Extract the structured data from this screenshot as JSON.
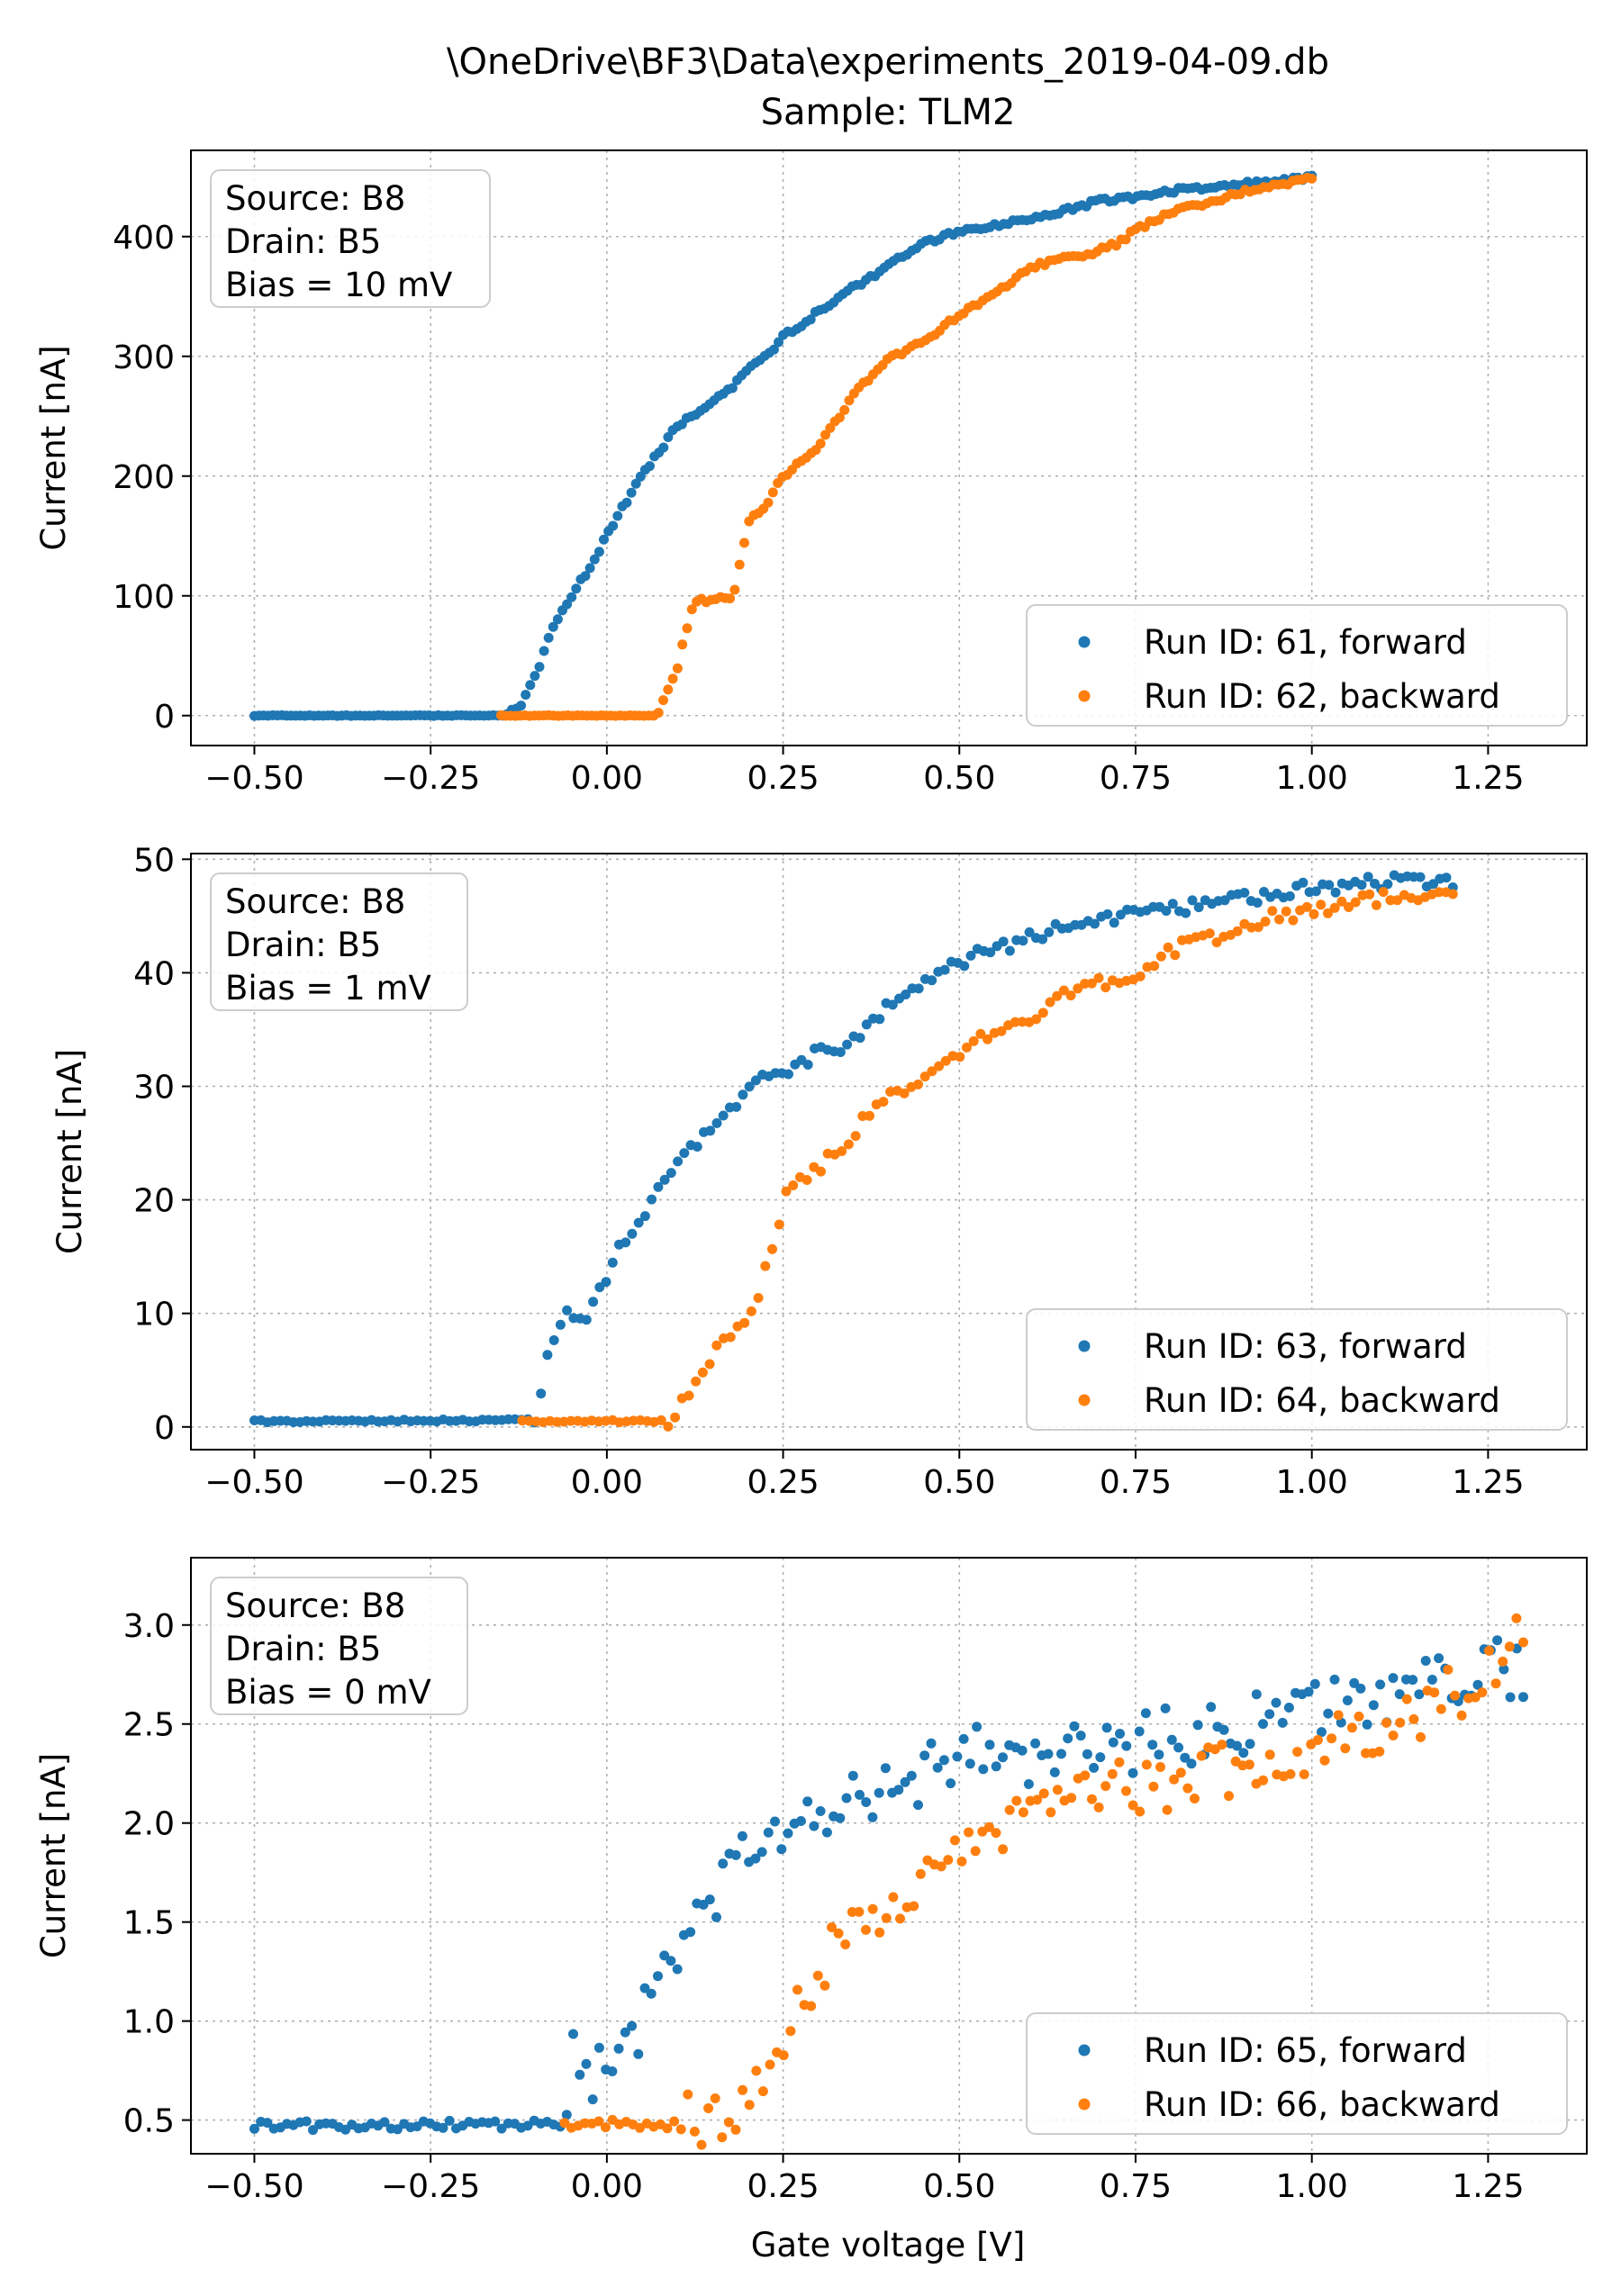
{
  "title_lines": [
    "\\OneDrive\\BF3\\Data\\experiments_2019-04-09.db",
    "Sample: TLM2"
  ],
  "xlabel": "Gate voltage [V]",
  "colors": {
    "forward": "#1f77b4",
    "backward": "#ff7f0e",
    "grid": "#b0b0b0"
  },
  "chart_data": [
    {
      "type": "scatter",
      "ylabel": "Current [nA]",
      "xlim": [
        -0.59,
        1.39
      ],
      "ylim": [
        -25,
        472
      ],
      "xticks": [
        "-0.50",
        "-0.25",
        "0.00",
        "0.25",
        "0.50",
        "0.75",
        "1.00",
        "1.25"
      ],
      "xtick_values": [
        -0.5,
        -0.25,
        0,
        0.25,
        0.5,
        0.75,
        1.0,
        1.25
      ],
      "yticks": [
        "0",
        "100",
        "200",
        "300",
        "400"
      ],
      "ytick_values": [
        0,
        100,
        200,
        300,
        400
      ],
      "grid": true,
      "info_box": [
        "Source: B8",
        "Drain: B5",
        "Bias = 10 mV"
      ],
      "legend_position": "lower right",
      "series": [
        {
          "name": "Run ID: 61, forward",
          "color": "#1f77b4",
          "x_range": [
            -0.5,
            1.0
          ],
          "n": 231,
          "points": [
            [
              -0.5,
              0
            ],
            [
              -0.15,
              0
            ],
            [
              -0.12,
              10
            ],
            [
              -0.1,
              35
            ],
            [
              -0.08,
              70
            ],
            [
              -0.05,
              100
            ],
            [
              -0.02,
              128
            ],
            [
              0.0,
              150
            ],
            [
              0.02,
              172
            ],
            [
              0.05,
              200
            ],
            [
              0.08,
              225
            ],
            [
              0.1,
              243
            ],
            [
              0.13,
              253
            ],
            [
              0.15,
              262
            ],
            [
              0.18,
              275
            ],
            [
              0.2,
              288
            ],
            [
              0.23,
              302
            ],
            [
              0.25,
              318
            ],
            [
              0.28,
              328
            ],
            [
              0.3,
              338
            ],
            [
              0.33,
              348
            ],
            [
              0.35,
              358
            ],
            [
              0.38,
              368
            ],
            [
              0.4,
              378
            ],
            [
              0.43,
              387
            ],
            [
              0.45,
              395
            ],
            [
              0.48,
              400
            ],
            [
              0.5,
              405
            ],
            [
              0.55,
              410
            ],
            [
              0.6,
              415
            ],
            [
              0.65,
              422
            ],
            [
              0.7,
              430
            ],
            [
              0.75,
              433
            ],
            [
              0.8,
              438
            ],
            [
              0.85,
              441
            ],
            [
              0.9,
              444
            ],
            [
              0.95,
              447
            ],
            [
              1.0,
              449
            ]
          ]
        },
        {
          "name": "Run ID: 62, backward",
          "color": "#ff7f0e",
          "x_range": [
            -0.15,
            1.0
          ],
          "n": 171,
          "points": [
            [
              -0.15,
              0
            ],
            [
              0.07,
              0
            ],
            [
              0.08,
              12
            ],
            [
              0.1,
              40
            ],
            [
              0.11,
              65
            ],
            [
              0.12,
              88
            ],
            [
              0.13,
              96
            ],
            [
              0.15,
              97
            ],
            [
              0.18,
              99
            ],
            [
              0.19,
              130
            ],
            [
              0.2,
              160
            ],
            [
              0.23,
              180
            ],
            [
              0.25,
              200
            ],
            [
              0.28,
              215
            ],
            [
              0.3,
              225
            ],
            [
              0.33,
              250
            ],
            [
              0.36,
              275
            ],
            [
              0.4,
              298
            ],
            [
              0.45,
              313
            ],
            [
              0.5,
              335
            ],
            [
              0.55,
              352
            ],
            [
              0.6,
              373
            ],
            [
              0.63,
              380
            ],
            [
              0.68,
              385
            ],
            [
              0.72,
              393
            ],
            [
              0.75,
              405
            ],
            [
              0.8,
              420
            ],
            [
              0.85,
              428
            ],
            [
              0.9,
              437
            ],
            [
              0.95,
              443
            ],
            [
              1.0,
              448
            ]
          ]
        }
      ],
      "legend": [
        "Run ID: 61, forward",
        "Run ID: 62, backward"
      ]
    },
    {
      "type": "scatter",
      "ylabel": "Current [nA]",
      "xlim": [
        -0.59,
        1.39
      ],
      "ylim": [
        -2,
        50.5
      ],
      "xticks": [
        "-0.50",
        "-0.25",
        "0.00",
        "0.25",
        "0.50",
        "0.75",
        "1.00",
        "1.25"
      ],
      "xtick_values": [
        -0.5,
        -0.25,
        0,
        0.25,
        0.5,
        0.75,
        1.0,
        1.25
      ],
      "yticks": [
        "0",
        "10",
        "20",
        "30",
        "40",
        "50"
      ],
      "ytick_values": [
        0,
        10,
        20,
        30,
        40,
        50
      ],
      "grid": true,
      "info_box": [
        "Source: B8",
        "Drain: B5",
        "Bias = 1 mV"
      ],
      "legend_position": "lower right",
      "series": [
        {
          "name": "Run ID: 63, forward",
          "color": "#1f77b4",
          "x_range": [
            -0.5,
            1.2
          ],
          "n": 185,
          "points": [
            [
              -0.5,
              0.5
            ],
            [
              -0.12,
              0.6
            ],
            [
              -0.1,
              1.0
            ],
            [
              -0.08,
              7.5
            ],
            [
              -0.06,
              10
            ],
            [
              -0.03,
              9
            ],
            [
              -0.01,
              12
            ],
            [
              0.02,
              16
            ],
            [
              0.05,
              18
            ],
            [
              0.08,
              22
            ],
            [
              0.1,
              23
            ],
            [
              0.12,
              25
            ],
            [
              0.15,
              26
            ],
            [
              0.18,
              28
            ],
            [
              0.2,
              30
            ],
            [
              0.25,
              31
            ],
            [
              0.3,
              33
            ],
            [
              0.35,
              34
            ],
            [
              0.4,
              37
            ],
            [
              0.45,
              39
            ],
            [
              0.5,
              41
            ],
            [
              0.55,
              42
            ],
            [
              0.6,
              43
            ],
            [
              0.65,
              44
            ],
            [
              0.7,
              44.8
            ],
            [
              0.75,
              45
            ],
            [
              0.8,
              45.5
            ],
            [
              0.85,
              46
            ],
            [
              0.9,
              46.5
            ],
            [
              0.95,
              47
            ],
            [
              1.0,
              47.5
            ],
            [
              1.05,
              47.8
            ],
            [
              1.1,
              48
            ],
            [
              1.15,
              48.2
            ],
            [
              1.2,
              48
            ]
          ]
        },
        {
          "name": "Run ID: 64, backward",
          "color": "#ff7f0e",
          "x_range": [
            -0.12,
            1.2
          ],
          "n": 135,
          "points": [
            [
              -0.12,
              0.5
            ],
            [
              0.08,
              0.5
            ],
            [
              0.1,
              0.8
            ],
            [
              0.11,
              3
            ],
            [
              0.13,
              4
            ],
            [
              0.15,
              6
            ],
            [
              0.17,
              8
            ],
            [
              0.2,
              9
            ],
            [
              0.22,
              13
            ],
            [
              0.24,
              16
            ],
            [
              0.25,
              21
            ],
            [
              0.28,
              22
            ],
            [
              0.3,
              23
            ],
            [
              0.33,
              24
            ],
            [
              0.35,
              26
            ],
            [
              0.4,
              29
            ],
            [
              0.45,
              31
            ],
            [
              0.5,
              33
            ],
            [
              0.55,
              35
            ],
            [
              0.6,
              36
            ],
            [
              0.65,
              38
            ],
            [
              0.7,
              39
            ],
            [
              0.75,
              40
            ],
            [
              0.8,
              42
            ],
            [
              0.85,
              43
            ],
            [
              0.9,
              44
            ],
            [
              0.95,
              45
            ],
            [
              1.0,
              45.5
            ],
            [
              1.05,
              46
            ],
            [
              1.1,
              46.5
            ],
            [
              1.15,
              47
            ],
            [
              1.2,
              47.5
            ]
          ]
        }
      ],
      "legend": [
        "Run ID: 63, forward",
        "Run ID: 64, backward"
      ]
    },
    {
      "type": "scatter",
      "ylabel": "Current [nA]",
      "xlim": [
        -0.59,
        1.39
      ],
      "ylim": [
        0.33,
        3.34
      ],
      "xticks": [
        "-0.50",
        "-0.25",
        "0.00",
        "0.25",
        "0.50",
        "0.75",
        "1.00",
        "1.25"
      ],
      "xtick_values": [
        -0.5,
        -0.25,
        0,
        0.25,
        0.5,
        0.75,
        1.0,
        1.25
      ],
      "yticks": [
        "0.5",
        "1.0",
        "1.5",
        "2.0",
        "2.5",
        "3.0"
      ],
      "ytick_values": [
        0.5,
        1.0,
        1.5,
        2.0,
        2.5,
        3.0
      ],
      "grid": true,
      "info_box": [
        "Source: B8",
        "Drain: B5",
        "Bias = 0 mV"
      ],
      "legend_position": "lower right",
      "series": [
        {
          "name": "Run ID: 65, forward",
          "color": "#1f77b4",
          "x_range": [
            -0.5,
            1.3
          ],
          "n": 196,
          "points": [
            [
              -0.5,
              0.47
            ],
            [
              -0.06,
              0.48
            ],
            [
              -0.05,
              0.8
            ],
            [
              -0.02,
              0.75
            ],
            [
              0.0,
              0.7
            ],
            [
              0.03,
              0.85
            ],
            [
              0.05,
              1.0
            ],
            [
              0.08,
              1.2
            ],
            [
              0.1,
              1.4
            ],
            [
              0.12,
              1.45
            ],
            [
              0.15,
              1.6
            ],
            [
              0.18,
              1.75
            ],
            [
              0.2,
              1.85
            ],
            [
              0.25,
              1.9
            ],
            [
              0.3,
              2.0
            ],
            [
              0.35,
              2.1
            ],
            [
              0.4,
              2.2
            ],
            [
              0.45,
              2.25
            ],
            [
              0.5,
              2.35
            ],
            [
              0.55,
              2.35
            ],
            [
              0.6,
              2.3
            ],
            [
              0.65,
              2.35
            ],
            [
              0.7,
              2.4
            ],
            [
              0.75,
              2.4
            ],
            [
              0.8,
              2.45
            ],
            [
              0.85,
              2.45
            ],
            [
              0.9,
              2.5
            ],
            [
              0.95,
              2.55
            ],
            [
              1.0,
              2.55
            ],
            [
              1.05,
              2.6
            ],
            [
              1.1,
              2.65
            ],
            [
              1.15,
              2.7
            ],
            [
              1.2,
              2.75
            ],
            [
              1.25,
              2.8
            ],
            [
              1.3,
              2.75
            ]
          ]
        },
        {
          "name": "Run ID: 66, backward",
          "color": "#ff7f0e",
          "x_range": [
            -0.06,
            1.3
          ],
          "n": 141,
          "points": [
            [
              -0.06,
              0.48
            ],
            [
              0.1,
              0.48
            ],
            [
              0.13,
              0.52
            ],
            [
              0.16,
              0.55
            ],
            [
              0.2,
              0.6
            ],
            [
              0.23,
              0.7
            ],
            [
              0.26,
              1.0
            ],
            [
              0.3,
              1.2
            ],
            [
              0.33,
              1.4
            ],
            [
              0.36,
              1.5
            ],
            [
              0.4,
              1.6
            ],
            [
              0.45,
              1.75
            ],
            [
              0.5,
              1.9
            ],
            [
              0.55,
              2.0
            ],
            [
              0.6,
              2.05
            ],
            [
              0.65,
              2.1
            ],
            [
              0.7,
              2.15
            ],
            [
              0.75,
              2.2
            ],
            [
              0.8,
              2.2
            ],
            [
              0.85,
              2.25
            ],
            [
              0.9,
              2.3
            ],
            [
              0.95,
              2.35
            ],
            [
              1.0,
              2.4
            ],
            [
              1.05,
              2.45
            ],
            [
              1.1,
              2.5
            ],
            [
              1.15,
              2.55
            ],
            [
              1.2,
              2.65
            ],
            [
              1.25,
              2.75
            ],
            [
              1.3,
              2.95
            ]
          ]
        }
      ],
      "legend": [
        "Run ID: 65, forward",
        "Run ID: 66, backward"
      ]
    }
  ]
}
